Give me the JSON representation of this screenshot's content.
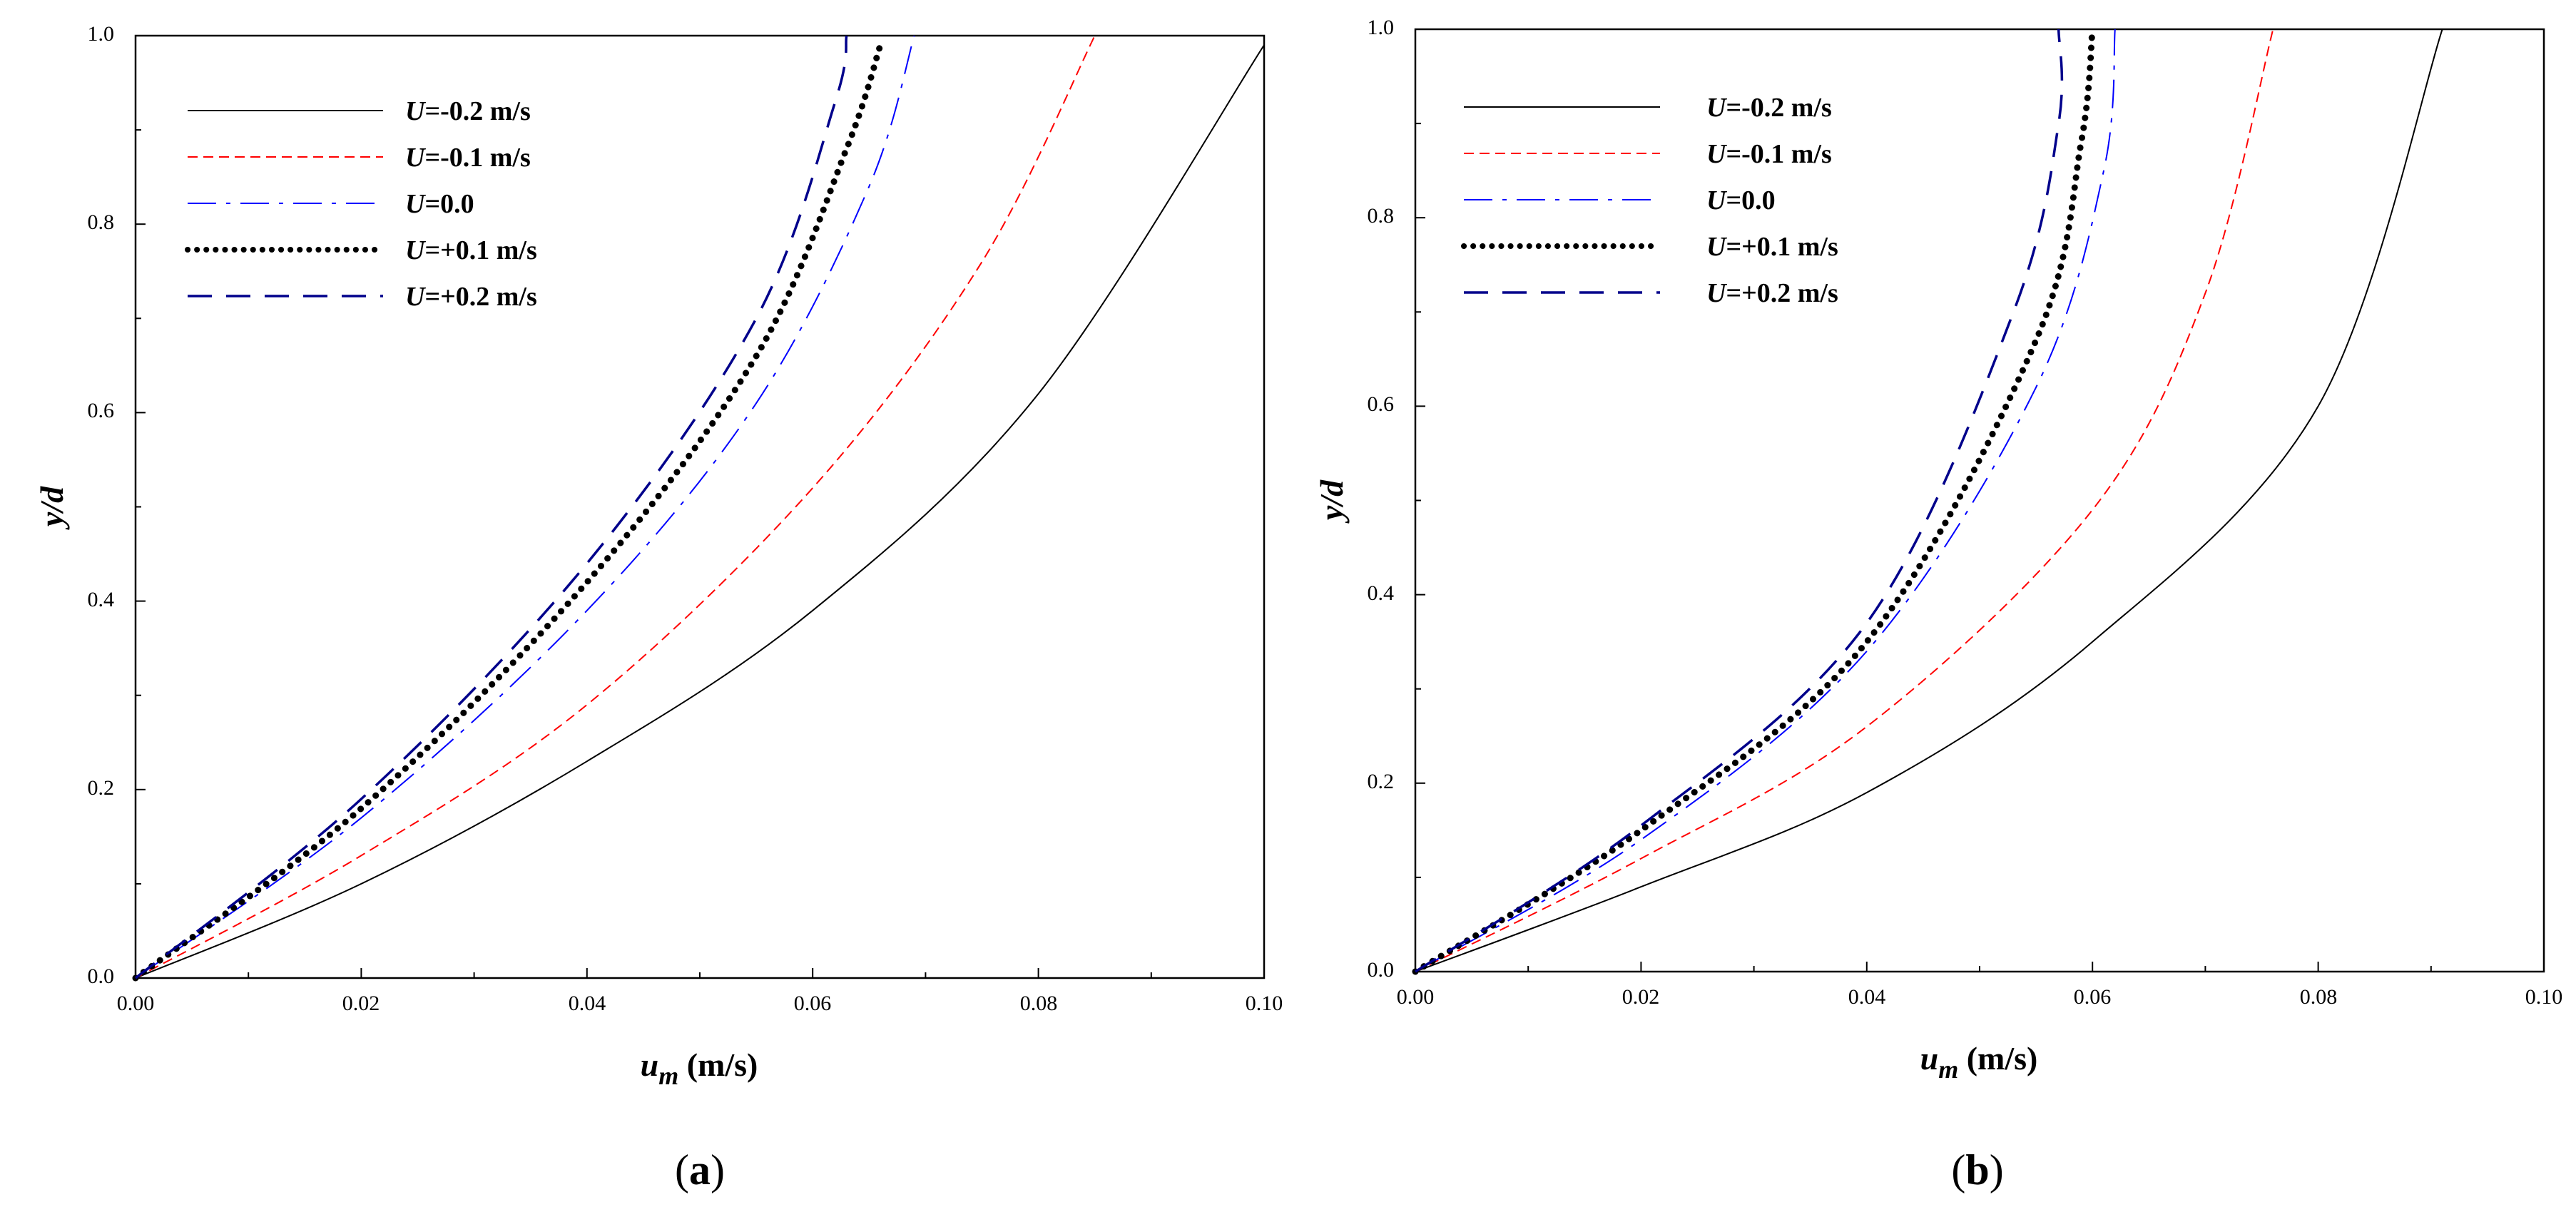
{
  "figure": {
    "panel_labels": [
      "(a)",
      "(b)"
    ]
  },
  "chart_data": [
    {
      "panel": "a",
      "type": "line",
      "title": "",
      "xlabel": "u_m (m/s)",
      "ylabel": "y/d",
      "xlim": [
        0,
        0.1
      ],
      "ylim": [
        0,
        1.0
      ],
      "xticks": [
        "0.00",
        "0.02",
        "0.04",
        "0.06",
        "0.08",
        "0.10"
      ],
      "yticks": [
        "0.0",
        "0.2",
        "0.4",
        "0.6",
        "0.8",
        "1.0"
      ],
      "grid": false,
      "legend_position": "top-left",
      "series": [
        {
          "name": "U=-0.2 m/s",
          "style": "solid",
          "color": "#000000",
          "x": [
            0,
            0.02,
            0.04,
            0.06,
            0.08,
            0.1
          ],
          "y": [
            0,
            0.1,
            0.23,
            0.39,
            0.62,
            0.99
          ]
        },
        {
          "name": "U=-0.1 m/s",
          "style": "dash-short",
          "color": "#ff0000",
          "x": [
            0,
            0.02,
            0.04,
            0.06,
            0.075,
            0.085
          ],
          "y": [
            0,
            0.13,
            0.29,
            0.52,
            0.76,
            1.0
          ]
        },
        {
          "name": "U=0.0",
          "style": "dash-long",
          "color": "#0000ff",
          "x": [
            0,
            0.02,
            0.04,
            0.055,
            0.065,
            0.069
          ],
          "y": [
            0,
            0.17,
            0.39,
            0.61,
            0.84,
            1.0
          ]
        },
        {
          "name": "U=+0.1 m/s",
          "style": "dotted",
          "color": "#000000",
          "x": [
            0,
            0.02,
            0.04,
            0.055,
            0.063,
            0.066
          ],
          "y": [
            0,
            0.18,
            0.42,
            0.66,
            0.88,
            0.99
          ]
        },
        {
          "name": "U=+0.2 m/s",
          "style": "dash-long",
          "color": "#00008b",
          "x": [
            0,
            0.02,
            0.04,
            0.055,
            0.062,
            0.063
          ],
          "y": [
            0,
            0.19,
            0.44,
            0.7,
            0.93,
            1.0
          ]
        }
      ]
    },
    {
      "panel": "b",
      "type": "line",
      "title": "",
      "xlabel": "u_m (m/s)",
      "ylabel": "y/d",
      "xlim": [
        0,
        0.1
      ],
      "ylim": [
        0,
        1.0
      ],
      "xticks": [
        "0.00",
        "0.02",
        "0.04",
        "0.06",
        "0.08",
        "0.10"
      ],
      "yticks": [
        "0.0",
        "0.2",
        "0.4",
        "0.6",
        "0.8",
        "1.0"
      ],
      "grid": false,
      "legend_position": "top-left",
      "series": [
        {
          "name": "U=-0.2 m/s",
          "style": "solid",
          "color": "#000000",
          "x": [
            0,
            0.02,
            0.04,
            0.06,
            0.08,
            0.091
          ],
          "y": [
            0,
            0.09,
            0.19,
            0.35,
            0.6,
            1.0
          ]
        },
        {
          "name": "U=-0.1 m/s",
          "style": "dash-short",
          "color": "#ff0000",
          "x": [
            0,
            0.02,
            0.04,
            0.06,
            0.07,
            0.076
          ],
          "y": [
            0,
            0.12,
            0.26,
            0.49,
            0.72,
            1.0
          ]
        },
        {
          "name": "U=0.0",
          "style": "dash-long",
          "color": "#0000ff",
          "x": [
            0,
            0.02,
            0.04,
            0.055,
            0.061,
            0.062
          ],
          "y": [
            0,
            0.14,
            0.34,
            0.62,
            0.85,
            1.0
          ]
        },
        {
          "name": "U=+0.1 m/s",
          "style": "dotted",
          "color": "#000000",
          "x": [
            0,
            0.02,
            0.04,
            0.055,
            0.059,
            0.06
          ],
          "y": [
            0,
            0.15,
            0.35,
            0.67,
            0.88,
            1.0
          ]
        },
        {
          "name": "U=+0.2 m/s",
          "style": "dash-long",
          "color": "#00008b",
          "x": [
            0,
            0.02,
            0.04,
            0.053,
            0.057,
            0.057
          ],
          "y": [
            0,
            0.155,
            0.37,
            0.7,
            0.9,
            1.0
          ]
        }
      ]
    }
  ]
}
